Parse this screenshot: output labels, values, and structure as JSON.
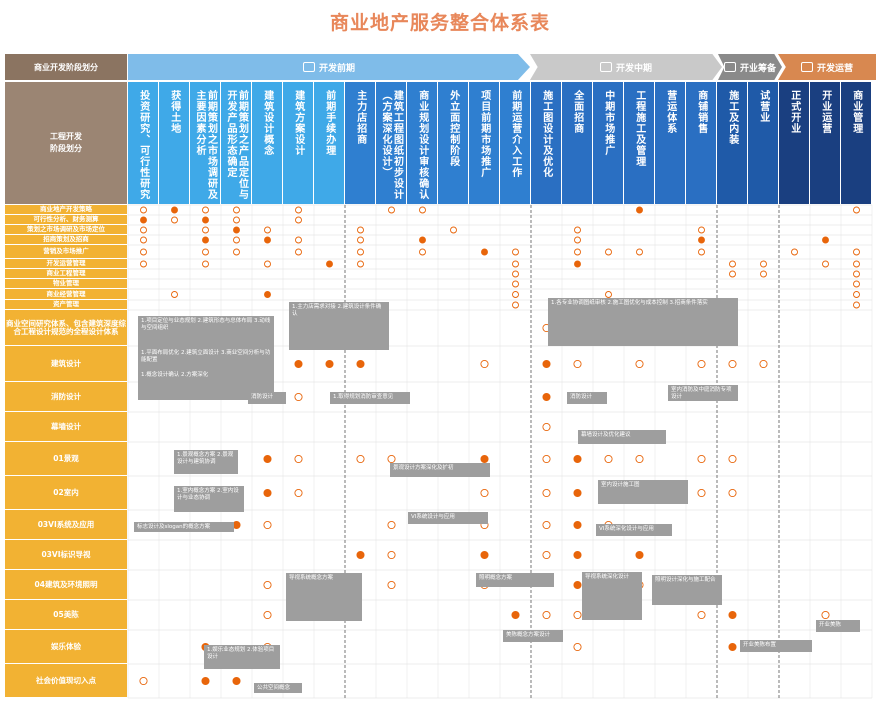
{
  "title": "商业地产服务整合体系表",
  "corner_label": "商业开发阶段划分",
  "row_header": [
    "工程开发",
    "阶段划分"
  ],
  "colors": {
    "title": "#e8875a",
    "row_label": "#f2b233",
    "stage1": "#3fa9e8",
    "stage2": "#2f7fd0",
    "stage3": "#1f5aa8",
    "stage4": "#1a3f80",
    "dot": "#e8650a",
    "note": "#9e9e9e"
  },
  "stages": [
    {
      "name": "开发前期",
      "color": "#7fbce9"
    },
    {
      "name": "开发中期",
      "color": "#c9c9c9"
    },
    {
      "name": "开业筹备",
      "color": "#8a8a8a"
    },
    {
      "name": "开发运营",
      "color": "#d88850"
    }
  ],
  "columns": [
    "投资研究、可行性研究",
    "获得土地",
    "前期策划之市场调研及主要因素分析",
    "前期策划之产品定位与开发产品形态确定",
    "建筑设计概念",
    "建筑方案设计",
    "前期手续办理",
    "主力店招商",
    "建筑工程图纸初步设计（方案深化设计）",
    "商业规划设计审核确认",
    "外立面控制阶段",
    "项目前期市场推广",
    "前期运营介入工作",
    "施工图设计及优化",
    "全面招商",
    "中期市场推广",
    "工程施工及管理",
    "营运体系",
    "商铺销售",
    "施工及内装",
    "试营业",
    "正式开业",
    "开业运营",
    "商业管理"
  ],
  "rows": [
    "商业地产开发策略",
    "可行性分析、财务测算",
    "策划之市场调研及市场定位",
    "招商策划及招商",
    "营销及市场推广",
    "开发运营管理",
    "商业工程管理",
    "物业管理",
    "商业经营管理",
    "资产管理",
    "商业空间研究体系、包含建筑深度综合工程设计规范的全程设计体系",
    "建筑设计",
    "消防设计",
    "幕墙设计",
    "01景观",
    "02室内",
    "03VI系统及应用",
    "03VI标识导视",
    "04建筑及环境照明",
    "05美陈",
    "娱乐体验",
    "社会价值现切入点"
  ],
  "notes": [
    "1.项目定位与业态规划 2.建筑形态与总体布局 3.动线与空间组织",
    "1.平面布局优化 2.建筑立面设计 3.商业空间分析与功能配置",
    "1.主力店需求对接 2.建筑设计条件确认",
    "1.各专业协调图纸审核 2.施工图优化与成本控制 3.招商条件落实",
    "1.概念设计确认 2.方案深化",
    "消防设计",
    "1.取得规划消防审查意见",
    "消防设计",
    "室内消防及中庭消防专项设计",
    "幕墙设计及优化建议",
    "1.景观概念方案 2.景观设计与建筑协调",
    "景观设计方案深化及扩初",
    "1.室内概念方案 2.室内设计与业态协调",
    "室内设计施工图",
    "标志设计及slogan的概念方案",
    "VI系统设计与应用",
    "VI系统深化设计与应用",
    "导视系统概念方案",
    "导视系统深化设计",
    "照明概念方案",
    "照明设计深化与施工配合",
    "美陈概念方案设计",
    "开业美陈布置",
    "开业美陈",
    "1.娱乐业态规划 2.体验项目设计",
    "公共空间概念"
  ]
}
